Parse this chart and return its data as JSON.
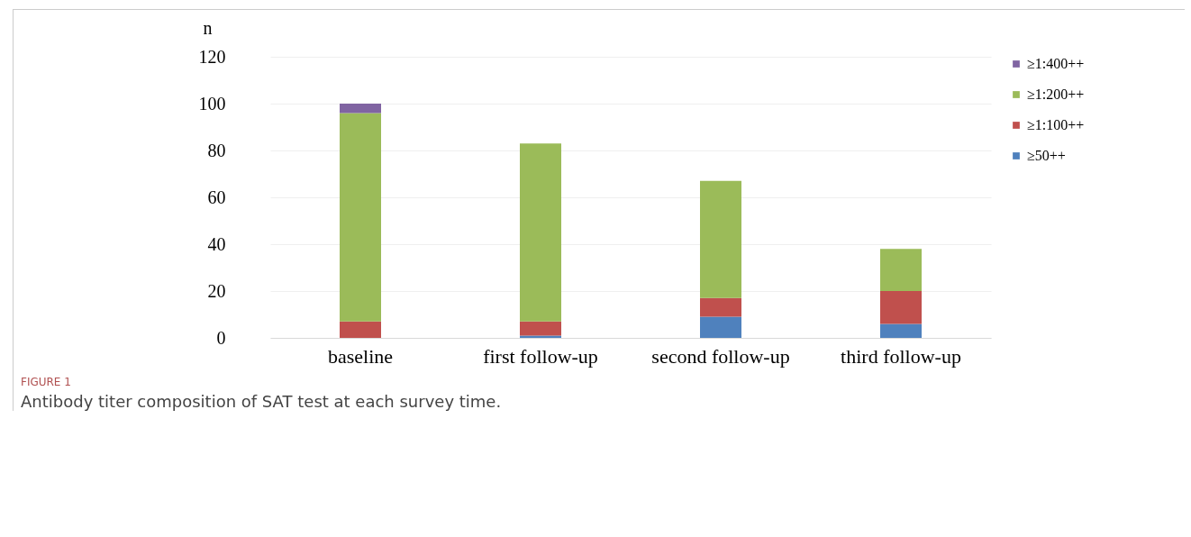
{
  "chart_data": {
    "type": "bar",
    "stacked": true,
    "ylabel": "n",
    "categories": [
      "baseline",
      "first follow-up",
      "second follow-up",
      "third follow-up"
    ],
    "series": [
      {
        "name": "≥50++",
        "color": "#4f81bd",
        "values": [
          0,
          1,
          9,
          6
        ]
      },
      {
        "name": "≥1:100++",
        "color": "#c0504d",
        "values": [
          7,
          6,
          8,
          14
        ]
      },
      {
        "name": "≥1:200++",
        "color": "#9bbb59",
        "values": [
          89,
          76,
          50,
          18
        ]
      },
      {
        "name": "≥1:400++",
        "color": "#8064a2",
        "values": [
          4,
          0,
          0,
          0
        ]
      }
    ],
    "ylim": [
      0,
      120
    ],
    "yticks": [
      0,
      20,
      40,
      60,
      80,
      100,
      120
    ],
    "grid": "y",
    "legend": "right",
    "annotations": [
      "FIGURE 1",
      "Antibody titer composition of SAT test at each survey time."
    ]
  }
}
